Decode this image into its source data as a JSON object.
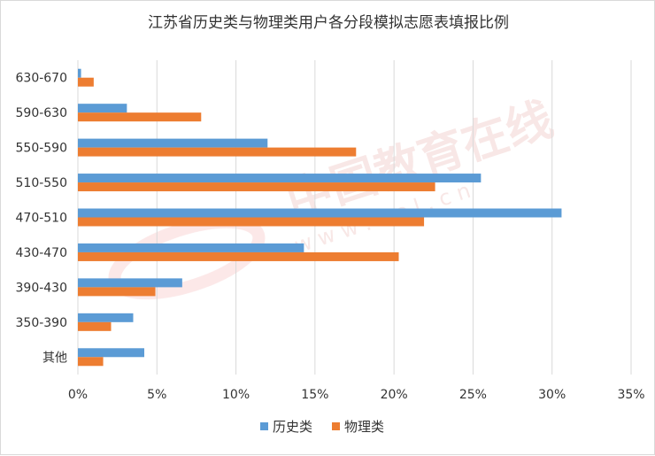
{
  "chart_data": {
    "type": "bar",
    "orientation": "horizontal",
    "title": "江苏省历史类与物理类用户各分段模拟志愿表填报比例",
    "xlabel": "",
    "ylabel": "",
    "categories": [
      "630-670",
      "590-630",
      "550-590",
      "510-550",
      "470-510",
      "430-470",
      "390-430",
      "350-390",
      "其他"
    ],
    "series": [
      {
        "name": "历史类",
        "color": "#5b9bd5",
        "values": [
          0.2,
          3.1,
          12.0,
          25.5,
          30.6,
          14.3,
          6.6,
          3.5,
          4.2
        ]
      },
      {
        "name": "物理类",
        "color": "#ed7d31",
        "values": [
          1.0,
          7.8,
          17.6,
          22.6,
          21.9,
          20.3,
          4.9,
          2.1,
          1.6
        ]
      }
    ],
    "xlim": [
      0,
      35
    ],
    "xticks": [
      0,
      5,
      10,
      15,
      20,
      25,
      30,
      35
    ],
    "tick_suffix": "%",
    "grid": true,
    "legend_position": "bottom"
  },
  "watermark": {
    "text": "中国教育在线",
    "subtext": "w w w . e o l . c n"
  }
}
